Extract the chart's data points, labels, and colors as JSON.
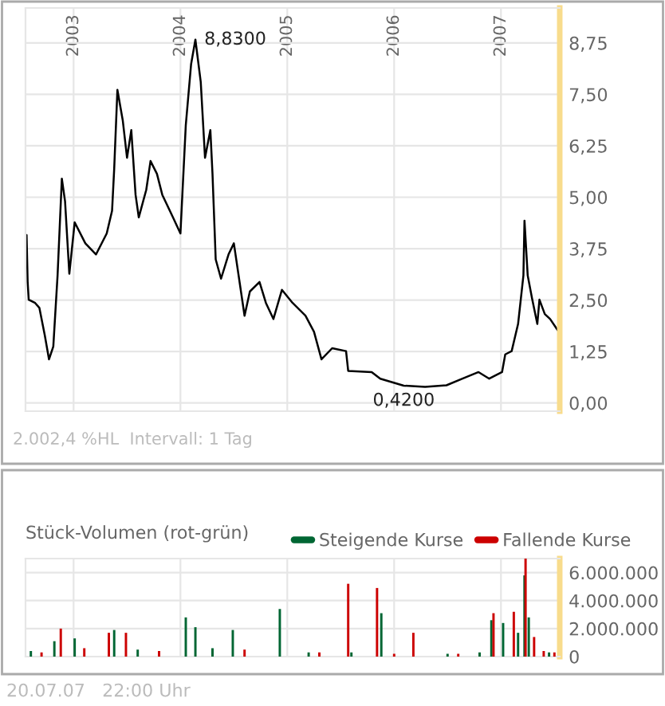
{
  "chart_data": [
    {
      "type": "line",
      "grid": true,
      "xlim": [
        2002.55,
        2007.55
      ],
      "ylim": [
        -0.2,
        9.6
      ],
      "xticks": [
        {
          "value": 2003,
          "label": "2003"
        },
        {
          "value": 2004,
          "label": "2004"
        },
        {
          "value": 2005,
          "label": "2005"
        },
        {
          "value": 2006,
          "label": "2006"
        },
        {
          "value": 2007,
          "label": "2007"
        }
      ],
      "yticks": [
        {
          "value": 0,
          "label": "0,00"
        },
        {
          "value": 1.25,
          "label": "1,25"
        },
        {
          "value": 2.5,
          "label": "2,50"
        },
        {
          "value": 3.75,
          "label": "3,75"
        },
        {
          "value": 5,
          "label": "5,00"
        },
        {
          "value": 6.25,
          "label": "6,25"
        },
        {
          "value": 7.5,
          "label": "7,50"
        },
        {
          "value": 8.75,
          "label": "8,75"
        }
      ],
      "series": [
        {
          "color": "#000000",
          "x": [
            2002.56,
            2002.57,
            2002.58,
            2002.64,
            2002.68,
            2002.73,
            2002.77,
            2002.81,
            2002.85,
            2002.89,
            2002.92,
            2002.96,
            2003.01,
            2003.11,
            2003.21,
            2003.31,
            2003.36,
            2003.38,
            2003.41,
            2003.46,
            2003.5,
            2003.54,
            2003.58,
            2003.61,
            2003.68,
            2003.72,
            2003.78,
            2003.83,
            2003.93,
            2004.0,
            2004.05,
            2004.1,
            2004.14,
            2004.19,
            2004.23,
            2004.28,
            2004.3,
            2004.33,
            2004.38,
            2004.45,
            2004.5,
            2004.6,
            2004.65,
            2004.74,
            2004.8,
            2004.87,
            2004.95,
            2005.05,
            2005.17,
            2005.25,
            2005.32,
            2005.42,
            2005.55,
            2005.57,
            2005.79,
            2005.87,
            2006.09,
            2006.29,
            2006.49,
            2006.64,
            2006.79,
            2006.89,
            2007.01,
            2007.04,
            2007.1,
            2007.16,
            2007.21,
            2007.22,
            2007.25,
            2007.29,
            2007.34,
            2007.36,
            2007.41,
            2007.46,
            2007.53
          ],
          "values": [
            4.08,
            2.94,
            2.51,
            2.43,
            2.31,
            1.65,
            1.06,
            1.37,
            3.1,
            5.45,
            4.9,
            3.14,
            4.39,
            3.88,
            3.61,
            4.12,
            4.67,
            5.69,
            7.61,
            6.87,
            5.96,
            6.63,
            5.06,
            4.51,
            5.18,
            5.88,
            5.57,
            5.06,
            4.51,
            4.12,
            6.75,
            8.24,
            8.83,
            7.8,
            5.96,
            6.63,
            5.57,
            3.49,
            3.02,
            3.61,
            3.88,
            2.12,
            2.71,
            2.94,
            2.43,
            2.04,
            2.75,
            2.43,
            2.12,
            1.73,
            1.06,
            1.33,
            1.26,
            0.78,
            0.75,
            0.59,
            0.42,
            0.39,
            0.43,
            0.59,
            0.75,
            0.59,
            0.75,
            1.18,
            1.26,
            1.92,
            3.1,
            4.43,
            3.1,
            2.55,
            1.92,
            2.51,
            2.16,
            2.04,
            1.77
          ]
        }
      ],
      "annotations": [
        {
          "text": "8,8300",
          "x": 2004.14,
          "y": 8.83
        },
        {
          "text": "0,4200",
          "x": 2006.09,
          "y": 0.42
        },
        "2.002,4 %HL  Intervall: 1 Tag"
      ]
    },
    {
      "type": "bar",
      "title": "Stück-Volumen (rot-grün)",
      "legend": "top right",
      "grid": true,
      "tick_labels": "y",
      "xlim": [
        2002.55,
        2007.55
      ],
      "ylim": [
        0,
        7000000
      ],
      "xticks": [
        {
          "value": 2003,
          "label": null
        },
        {
          "value": 2004,
          "label": null
        },
        {
          "value": 2005,
          "label": null
        },
        {
          "value": 2006,
          "label": null
        },
        {
          "value": 2007,
          "label": null
        }
      ],
      "yticks": [
        {
          "value": 0,
          "label": "0"
        },
        {
          "value": 2000000,
          "label": "2.000.000"
        },
        {
          "value": 4000000,
          "label": "4.000.000"
        },
        {
          "value": 6000000,
          "label": "6.000.000"
        }
      ],
      "series": [
        {
          "name": "Steigende Kurse",
          "color": "#006633",
          "x": [
            2002.6,
            2002.82,
            2003.01,
            2003.38,
            2003.6,
            2004.05,
            2004.14,
            2004.3,
            2004.49,
            2004.93,
            2005.2,
            2005.6,
            2005.88,
            2006.5,
            2006.8,
            2006.91,
            2007.02,
            2007.16,
            2007.22,
            2007.26,
            2007.45
          ],
          "values": [
            400000,
            1100000,
            1300000,
            1900000,
            500000,
            2800000,
            2100000,
            600000,
            1900000,
            3400000,
            300000,
            300000,
            3100000,
            200000,
            300000,
            2600000,
            2400000,
            1700000,
            5800000,
            2800000,
            300000
          ]
        },
        {
          "name": "Fallende Kurse",
          "color": "#cc0000",
          "x": [
            2002.7,
            2002.88,
            2003.1,
            2003.33,
            2003.49,
            2003.8,
            2004.6,
            2005.3,
            2005.57,
            2005.84,
            2006.0,
            2006.18,
            2006.6,
            2006.93,
            2007.12,
            2007.23,
            2007.31,
            2007.4,
            2007.5
          ],
          "values": [
            300000,
            2000000,
            600000,
            1700000,
            1700000,
            400000,
            500000,
            300000,
            5200000,
            4900000,
            200000,
            1700000,
            200000,
            3100000,
            3200000,
            7000000,
            1400000,
            400000,
            300000
          ]
        }
      ],
      "annotations": [
        "20.07.07   22:00 Uhr"
      ]
    }
  ]
}
